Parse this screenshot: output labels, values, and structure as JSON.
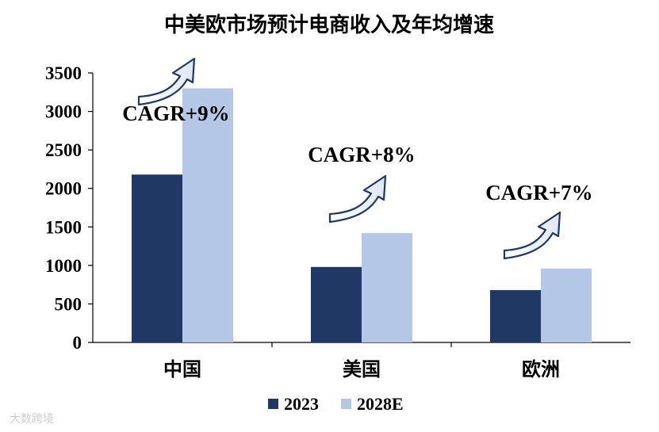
{
  "chart_data": {
    "type": "bar",
    "title": "中美欧市场预计电商收入及年均增速",
    "categories": [
      "中国",
      "美国",
      "欧洲"
    ],
    "series": [
      {
        "name": "2023",
        "values": [
          2180,
          980,
          680
        ],
        "color": "#1f3864"
      },
      {
        "name": "2028E",
        "values": [
          3300,
          1420,
          960
        ],
        "color": "#b4c7e7"
      }
    ],
    "annotations": [
      "CAGR+9%",
      "CAGR+8%",
      "CAGR+7%"
    ],
    "ylim": [
      0,
      3500
    ],
    "yticks": [
      "0",
      "500",
      "1000",
      "1500",
      "2000",
      "2500",
      "3000",
      "3500"
    ],
    "grid": false,
    "legend_position": "bottom-center",
    "xlabel": "",
    "ylabel": ""
  },
  "watermark": "大数跨境"
}
